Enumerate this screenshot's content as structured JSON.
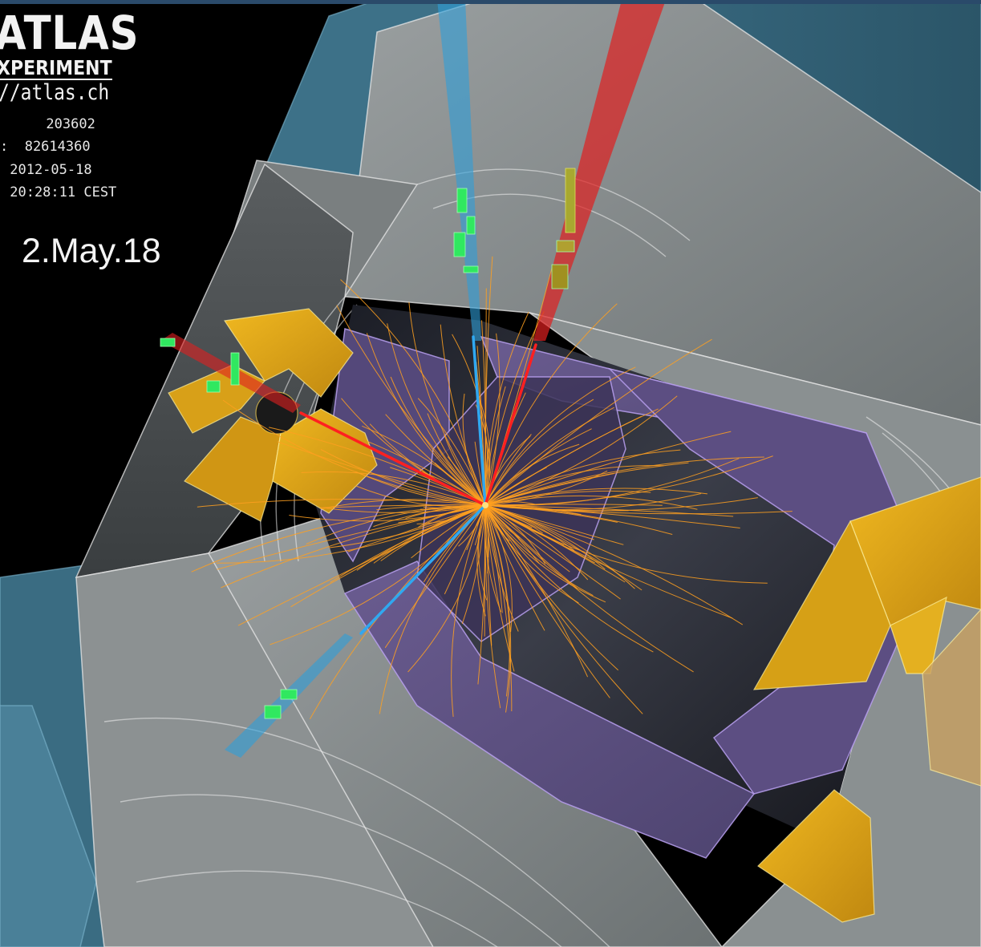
{
  "logo": {
    "title": "ATLAS",
    "subtitle": "XPERIMENT",
    "url": "//atlas.ch"
  },
  "event_info": {
    "run_line": "      203602",
    "event_line": ":  82614360",
    "date_line": " 2012-05-18",
    "time_line": " 20:28:11 CEST"
  },
  "date_stamp": "2.May.18",
  "colors": {
    "background": "#000000",
    "muon_chamber": "#4a7e96",
    "calorimeter_gray": "#8a8f90",
    "calorimeter_purple": "#5e5080",
    "endcap_yellow": "#e0a818",
    "tracks": "#ffa020",
    "electron": "#e02020",
    "muon": "#2fa8e8",
    "hits": "#30e860"
  }
}
